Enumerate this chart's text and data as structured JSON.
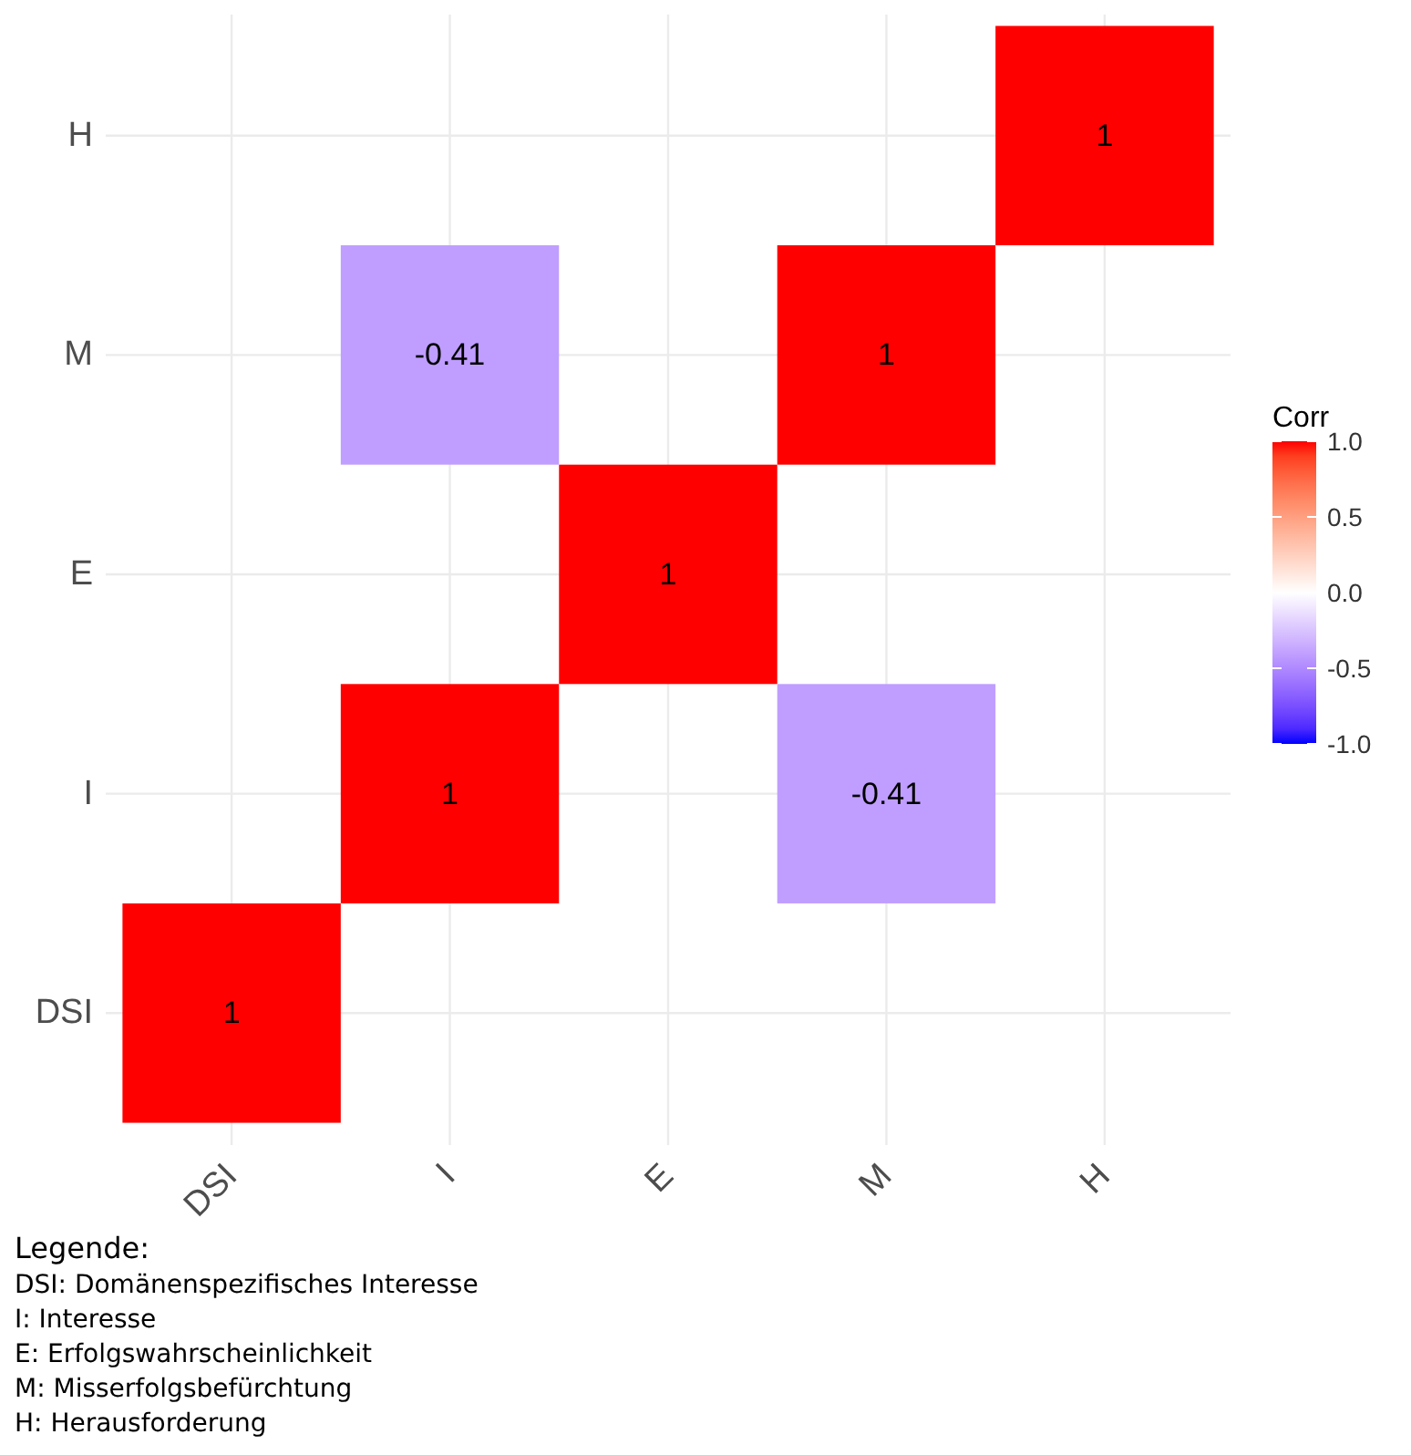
{
  "chart_data": {
    "type": "heatmap",
    "legend_title": "Corr",
    "categories": [
      "DSI",
      "I",
      "E",
      "M",
      "H"
    ],
    "y_categories": [
      "H",
      "M",
      "E",
      "I",
      "DSI"
    ],
    "cells": [
      [
        null,
        null,
        null,
        null,
        1
      ],
      [
        null,
        -0.41,
        null,
        1,
        null
      ],
      [
        null,
        null,
        1,
        null,
        null
      ],
      [
        null,
        1,
        null,
        -0.41,
        null
      ],
      [
        1,
        null,
        null,
        null,
        null
      ]
    ],
    "clim": [
      -1,
      1
    ],
    "cticks": [
      {
        "value": -1,
        "label": "-1.0"
      },
      {
        "value": -0.5,
        "label": "-0.5"
      },
      {
        "value": 0,
        "label": "0.0"
      },
      {
        "value": 0.5,
        "label": "0.5"
      },
      {
        "value": 1,
        "label": "1.0"
      }
    ],
    "data_labels": true,
    "grid": true,
    "annotations": [
      "Legende:",
      "DSI: Domänenspezifisches Interesse",
      "I: Interesse",
      "E: Erfolgswahrscheinlichkeit",
      "M: Misserfolgsbefürchtung",
      "H: Herausforderung"
    ]
  }
}
